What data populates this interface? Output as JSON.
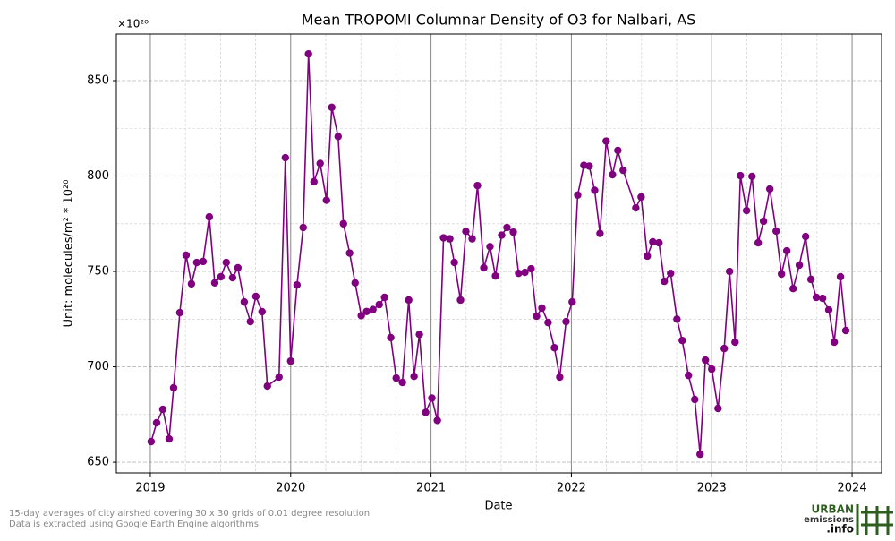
{
  "chart_data": {
    "type": "line",
    "title": "Mean TROPOMI Columnar Density of O3 for Nalbari, AS",
    "x_label": "Date",
    "y_label": "Unit: molecules/m² * 10²⁰",
    "y_offset_label": "×10²⁰",
    "footnote": [
      "15-day averages of city airshed covering 30 x 30 grids of 0.01 degree resolution",
      "Data is extracted using Google Earth Engine algorithms"
    ],
    "logo": [
      "URBAN",
      "emissions",
      ".info"
    ],
    "grid": true,
    "xlim": [
      2018.758,
      2024.21
    ],
    "xticks": [
      2019,
      2020,
      2021,
      2022,
      2023,
      2024
    ],
    "ylim": [
      644.4,
      874.4
    ],
    "yticks": [
      650,
      700,
      750,
      800,
      850
    ],
    "x": [
      2019.006,
      2019.045,
      2019.089,
      2019.134,
      2019.166,
      2019.21,
      2019.255,
      2019.293,
      2019.331,
      2019.376,
      2019.42,
      2019.459,
      2019.503,
      2019.541,
      2019.586,
      2019.624,
      2019.669,
      2019.713,
      2019.752,
      2019.796,
      2019.834,
      2019.917,
      2019.962,
      2020.0,
      2020.045,
      2020.089,
      2020.127,
      2020.166,
      2020.21,
      2020.255,
      2020.293,
      2020.338,
      2020.376,
      2020.42,
      2020.459,
      2020.503,
      2020.541,
      2020.586,
      2020.631,
      2020.669,
      2020.713,
      2020.752,
      2020.796,
      2020.841,
      2020.879,
      2020.917,
      2020.962,
      2021.006,
      2021.045,
      2021.089,
      2021.134,
      2021.166,
      2021.21,
      2021.248,
      2021.293,
      2021.331,
      2021.376,
      2021.42,
      2021.459,
      2021.503,
      2021.541,
      2021.586,
      2021.624,
      2021.669,
      2021.713,
      2021.752,
      2021.79,
      2021.834,
      2021.879,
      2021.917,
      2021.962,
      2022.006,
      2022.045,
      2022.089,
      2022.127,
      2022.166,
      2022.204,
      2022.248,
      2022.293,
      2022.331,
      2022.369,
      2022.459,
      2022.497,
      2022.541,
      2022.58,
      2022.624,
      2022.662,
      2022.707,
      2022.752,
      2022.79,
      2022.834,
      2022.879,
      2022.917,
      2022.955,
      2023.0,
      2023.045,
      2023.089,
      2023.127,
      2023.166,
      2023.204,
      2023.248,
      2023.287,
      2023.331,
      2023.369,
      2023.414,
      2023.459,
      2023.497,
      2023.535,
      2023.58,
      2023.624,
      2023.669,
      2023.707,
      2023.745,
      2023.79,
      2023.834,
      2023.873,
      2023.917,
      2023.955
    ],
    "series": [
      {
        "color": "#800080",
        "values": [
          660.8,
          670.7,
          677.7,
          662.2,
          689,
          728.4,
          758.5,
          743.5,
          754.7,
          755.2,
          778.6,
          744,
          747.2,
          754.7,
          746.7,
          751.9,
          734,
          723.7,
          736.9,
          728.9,
          689.9,
          694.6,
          809.6,
          703,
          742.9,
          773,
          864,
          797,
          806.6,
          787.3,
          836,
          820.7,
          775,
          759.6,
          744,
          726.8,
          729,
          730,
          732.6,
          736.4,
          715.3,
          694.1,
          691.8,
          735,
          695,
          717,
          676.1,
          683.6,
          671.9,
          767.6,
          767.1,
          754.7,
          735,
          771,
          767.1,
          795,
          751.9,
          763,
          747.6,
          769,
          773,
          770.6,
          749,
          749.5,
          751.4,
          726.5,
          730.8,
          723.2,
          710,
          694.6,
          723.7,
          734,
          790,
          805.6,
          805.2,
          792.5,
          769.9,
          818.3,
          800.7,
          813.4,
          803,
          783.3,
          789,
          758,
          765.5,
          765,
          744.8,
          749,
          725,
          713.8,
          695.5,
          682.9,
          654.2,
          703.5,
          698.8,
          678.2,
          709.6,
          750,
          712.9,
          800.2,
          781.9,
          799.8,
          765,
          776.3,
          793.2,
          771.1,
          748.6,
          760.8,
          741,
          753.3,
          768.3,
          745.8,
          736.4,
          735.9,
          729.8,
          712.9,
          747.2,
          719
        ]
      }
    ]
  }
}
